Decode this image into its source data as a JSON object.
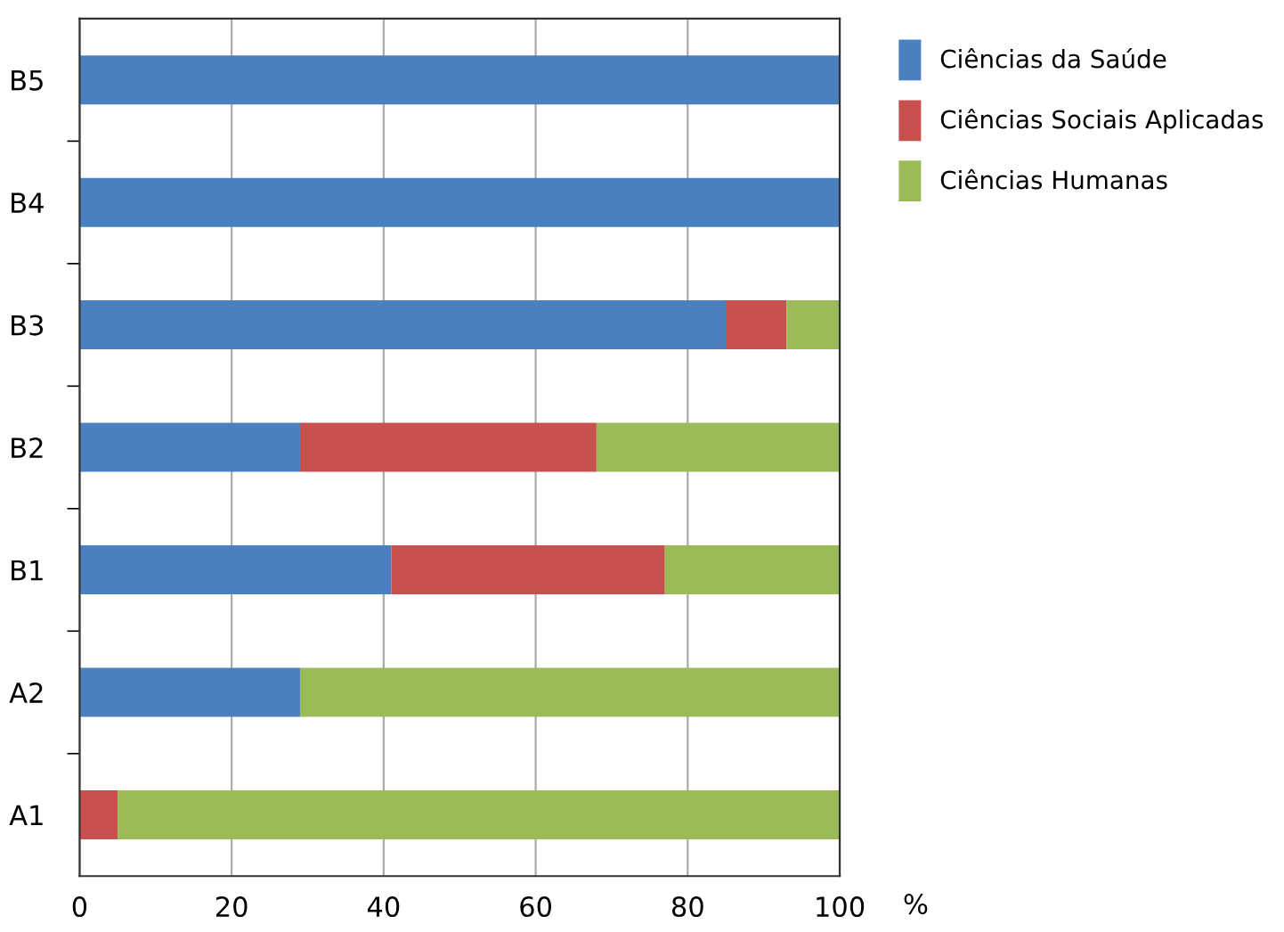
{
  "chart_data": {
    "type": "bar",
    "orientation": "horizontal",
    "stacked": true,
    "xlabel": "%",
    "categories": [
      "B5",
      "B4",
      "B3",
      "B2",
      "B1",
      "A2",
      "A1"
    ],
    "series": [
      {
        "name": "Ciências da Saúde",
        "color": "#4a80c0",
        "values": [
          100,
          100,
          85,
          29,
          41,
          29,
          0
        ]
      },
      {
        "name": "Ciências Sociais Aplicadas",
        "color": "#c8504e",
        "values": [
          0,
          0,
          8,
          39,
          36,
          0,
          5
        ]
      },
      {
        "name": "Ciências Humanas",
        "color": "#9bbb59",
        "values": [
          0,
          0,
          7,
          32,
          23,
          71,
          95
        ]
      }
    ],
    "xlim": [
      0,
      100
    ],
    "xticks": [
      0,
      20,
      40,
      60,
      80,
      100
    ],
    "grid": "x",
    "legend": "top right"
  }
}
